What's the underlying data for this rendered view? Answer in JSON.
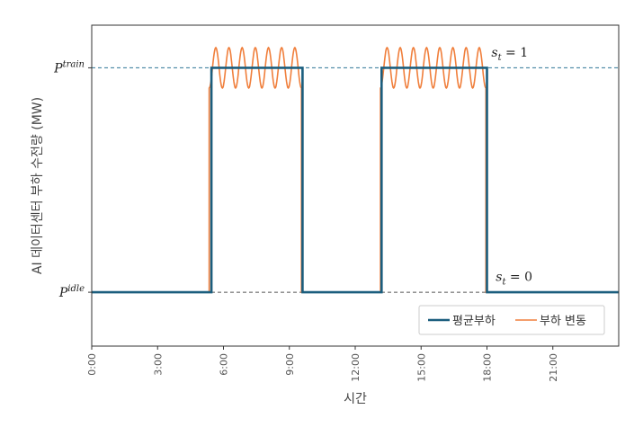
{
  "chart_data": {
    "type": "line",
    "title": "",
    "xlabel": "시간",
    "ylabel": "AI 데이터센터 부하 수전량 (MW)",
    "xlim": [
      0,
      24
    ],
    "ylim": [
      -0.24,
      1.19
    ],
    "grid": false,
    "x_ticks": [
      0,
      3,
      6,
      9,
      12,
      15,
      18,
      21
    ],
    "x_tick_labels": [
      "0:00",
      "3:00",
      "6:00",
      "9:00",
      "12:00",
      "15:00",
      "18:00",
      "21:00"
    ],
    "y_ticks": [
      {
        "value": 0,
        "base": "P",
        "sup": "idle"
      },
      {
        "value": 1,
        "base": "P",
        "sup": "train"
      }
    ],
    "reference_lines": [
      {
        "y": 1,
        "style": "dashed",
        "color": "#2e7596"
      },
      {
        "y": 0,
        "style": "dashed",
        "color": "#555555"
      }
    ],
    "annotations": [
      {
        "text_base": "s",
        "text_sub": "t",
        "text_rest": " = 1",
        "x": 18.2,
        "y": 1.05
      },
      {
        "text_base": "s",
        "text_sub": "t",
        "text_rest": " = 0",
        "x": 18.4,
        "y": 0.05
      }
    ],
    "series": [
      {
        "name": "평균부하",
        "color": "#1b5e7e",
        "x": [
          0,
          5.45,
          5.45,
          9.6,
          9.6,
          13.2,
          13.2,
          18.0,
          18.0,
          24
        ],
        "y": [
          0,
          0,
          1,
          1,
          0,
          0,
          1,
          1,
          0,
          0
        ]
      },
      {
        "name": "부하 변동",
        "color": "#f07f3c",
        "high_intervals": [
          [
            5.35,
            9.55
          ],
          [
            13.15,
            17.95
          ]
        ],
        "oscillation_amplitude": 0.09,
        "oscillation_period_hours": 0.6
      }
    ],
    "legend": {
      "placement": "bottom-right",
      "entries": [
        "평균부하",
        "부하 변동"
      ]
    }
  }
}
